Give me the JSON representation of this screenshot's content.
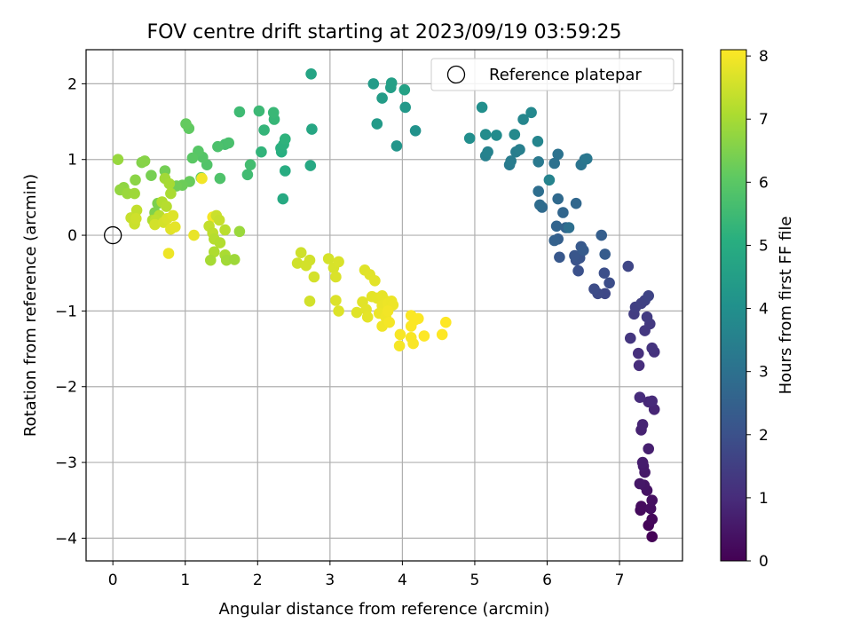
{
  "chart_data": {
    "type": "scatter",
    "title": "FOV centre drift starting at 2023/09/19 03:59:25",
    "xlabel": "Angular distance from reference (arcmin)",
    "ylabel": "Rotation from reference (arcmin)",
    "xlim": [
      -0.37,
      7.87
    ],
    "ylim": [
      -4.3,
      2.45
    ],
    "xticks": [
      0,
      1,
      2,
      3,
      4,
      5,
      6,
      7
    ],
    "yticks": [
      2,
      1,
      0,
      -1,
      -2,
      -3,
      -4
    ],
    "xtick_labels": [
      "0",
      "1",
      "2",
      "3",
      "4",
      "5",
      "6",
      "7"
    ],
    "ytick_labels": [
      "2",
      "1",
      "0",
      "−1",
      "−2",
      "−3",
      "−4"
    ],
    "grid": true,
    "legend": {
      "position": "top-right",
      "label": "Reference platepar"
    },
    "reference_point": {
      "x": 0,
      "y": 0
    },
    "colorbar": {
      "label": "Hours from first FF file",
      "range": [
        0,
        8.1
      ],
      "ticks": [
        0,
        1,
        2,
        3,
        4,
        5,
        6,
        7,
        8
      ],
      "tick_labels": [
        "0",
        "1",
        "2",
        "3",
        "4",
        "5",
        "6",
        "7",
        "8"
      ],
      "colormap": "viridis"
    },
    "points": [
      [
        7.45,
        -3.98,
        0.05
      ],
      [
        7.4,
        -3.83,
        0.1
      ],
      [
        7.45,
        -3.75,
        0.15
      ],
      [
        7.29,
        -3.63,
        0.2
      ],
      [
        7.3,
        -3.58,
        0.25
      ],
      [
        7.43,
        -3.61,
        0.3
      ],
      [
        7.45,
        -3.5,
        0.35
      ],
      [
        7.38,
        -3.37,
        0.4
      ],
      [
        7.34,
        -3.3,
        0.45
      ],
      [
        7.28,
        -3.28,
        0.5
      ],
      [
        7.35,
        -3.13,
        0.55
      ],
      [
        7.33,
        -3.05,
        0.6
      ],
      [
        7.32,
        -3.0,
        0.65
      ],
      [
        7.4,
        -2.82,
        0.7
      ],
      [
        7.3,
        -2.57,
        0.75
      ],
      [
        7.32,
        -2.5,
        0.8
      ],
      [
        7.48,
        -2.3,
        0.85
      ],
      [
        7.4,
        -2.2,
        0.9
      ],
      [
        7.45,
        -2.19,
        0.95
      ],
      [
        7.28,
        -2.14,
        1.0
      ],
      [
        7.27,
        -1.72,
        1.05
      ],
      [
        7.26,
        -1.56,
        1.1
      ],
      [
        7.48,
        -1.54,
        1.15
      ],
      [
        7.45,
        -1.49,
        1.2
      ],
      [
        7.15,
        -1.36,
        1.25
      ],
      [
        7.35,
        -1.26,
        1.3
      ],
      [
        7.42,
        -1.17,
        1.35
      ],
      [
        7.38,
        -1.08,
        1.4
      ],
      [
        7.2,
        -1.04,
        1.45
      ],
      [
        7.22,
        -0.95,
        1.5
      ],
      [
        7.3,
        -0.9,
        1.55
      ],
      [
        7.35,
        -0.86,
        1.6
      ],
      [
        7.4,
        -0.8,
        1.65
      ],
      [
        7.12,
        -0.41,
        1.7
      ],
      [
        6.8,
        -0.77,
        1.75
      ],
      [
        6.7,
        -0.77,
        1.8
      ],
      [
        6.65,
        -0.71,
        1.85
      ],
      [
        6.86,
        -0.63,
        1.9
      ],
      [
        6.79,
        -0.5,
        1.95
      ],
      [
        6.43,
        -0.47,
        2.0
      ],
      [
        6.4,
        -0.33,
        2.05
      ],
      [
        6.45,
        -0.3,
        2.1
      ],
      [
        6.38,
        -0.27,
        2.15
      ],
      [
        6.17,
        -0.29,
        2.2
      ],
      [
        6.47,
        -0.15,
        2.25
      ],
      [
        6.5,
        -0.2,
        2.3
      ],
      [
        6.8,
        -0.25,
        2.35
      ],
      [
        6.75,
        0.0,
        2.4
      ],
      [
        6.15,
        -0.05,
        2.45
      ],
      [
        6.1,
        -0.07,
        2.5
      ],
      [
        6.26,
        0.1,
        2.55
      ],
      [
        6.13,
        0.12,
        2.6
      ],
      [
        6.22,
        0.3,
        2.65
      ],
      [
        6.4,
        0.42,
        2.7
      ],
      [
        6.15,
        0.48,
        2.75
      ],
      [
        5.93,
        0.37,
        2.8
      ],
      [
        5.9,
        0.4,
        2.85
      ],
      [
        5.88,
        0.58,
        2.9
      ],
      [
        6.3,
        0.1,
        2.95
      ],
      [
        6.1,
        0.95,
        3.0
      ],
      [
        6.15,
        1.07,
        3.05
      ],
      [
        6.47,
        0.93,
        3.1
      ],
      [
        6.52,
        1.0,
        3.15
      ],
      [
        6.55,
        1.01,
        3.2
      ],
      [
        5.88,
        0.97,
        3.25
      ],
      [
        5.48,
        0.93,
        3.3
      ],
      [
        5.5,
        0.98,
        3.35
      ],
      [
        5.57,
        1.1,
        3.4
      ],
      [
        5.62,
        1.13,
        3.45
      ],
      [
        5.15,
        1.05,
        3.5
      ],
      [
        5.18,
        1.1,
        3.55
      ],
      [
        6.03,
        0.73,
        3.6
      ],
      [
        5.87,
        1.24,
        3.65
      ],
      [
        5.67,
        1.53,
        3.7
      ],
      [
        5.78,
        1.62,
        3.75
      ],
      [
        5.55,
        1.33,
        3.8
      ],
      [
        5.3,
        1.32,
        3.85
      ],
      [
        5.15,
        1.33,
        3.9
      ],
      [
        4.93,
        1.28,
        3.95
      ],
      [
        5.1,
        1.69,
        4.0
      ],
      [
        4.18,
        1.38,
        4.1
      ],
      [
        3.92,
        1.18,
        4.2
      ],
      [
        4.04,
        1.69,
        4.3
      ],
      [
        3.65,
        1.47,
        4.35
      ],
      [
        3.6,
        2.0,
        4.4
      ],
      [
        3.72,
        1.81,
        4.45
      ],
      [
        3.84,
        1.95,
        4.5
      ],
      [
        3.85,
        2.01,
        4.55
      ],
      [
        4.03,
        1.92,
        4.6
      ],
      [
        2.74,
        2.13,
        4.7
      ],
      [
        2.75,
        1.4,
        4.8
      ],
      [
        2.73,
        0.92,
        4.85
      ],
      [
        2.35,
        0.48,
        4.9
      ],
      [
        2.38,
        0.85,
        5.0
      ],
      [
        2.33,
        1.1,
        5.05
      ],
      [
        2.32,
        1.15,
        5.1
      ],
      [
        2.36,
        1.2,
        5.15
      ],
      [
        2.38,
        1.27,
        5.2
      ],
      [
        2.05,
        1.1,
        5.25
      ],
      [
        2.09,
        1.39,
        5.3
      ],
      [
        2.23,
        1.53,
        5.35
      ],
      [
        2.22,
        1.62,
        5.4
      ],
      [
        2.02,
        1.64,
        5.45
      ],
      [
        1.75,
        1.63,
        5.5
      ],
      [
        1.86,
        0.8,
        5.55
      ],
      [
        1.9,
        0.93,
        5.6
      ],
      [
        1.55,
        1.2,
        5.65
      ],
      [
        1.6,
        1.22,
        5.7
      ],
      [
        1.45,
        1.17,
        5.75
      ],
      [
        1.48,
        0.75,
        5.8
      ],
      [
        1.3,
        0.93,
        5.85
      ],
      [
        1.24,
        1.03,
        5.9
      ],
      [
        1.18,
        1.11,
        5.95
      ],
      [
        1.1,
        1.02,
        6.0
      ],
      [
        1.22,
        0.76,
        6.05
      ],
      [
        1.05,
        1.41,
        6.1
      ],
      [
        1.01,
        1.47,
        6.15
      ],
      [
        1.06,
        0.71,
        6.2
      ],
      [
        0.96,
        0.66,
        6.25
      ],
      [
        0.88,
        0.65,
        6.3
      ],
      [
        0.72,
        0.85,
        6.35
      ],
      [
        0.53,
        0.79,
        6.4
      ],
      [
        0.62,
        0.42,
        6.45
      ],
      [
        0.58,
        0.3,
        6.5
      ],
      [
        0.4,
        0.96,
        6.55
      ],
      [
        0.44,
        0.98,
        6.6
      ],
      [
        0.31,
        0.73,
        6.65
      ],
      [
        0.15,
        0.63,
        6.7
      ],
      [
        0.1,
        0.6,
        6.75
      ],
      [
        0.07,
        1.0,
        6.8
      ],
      [
        0.2,
        0.55,
        6.85
      ],
      [
        0.3,
        0.55,
        6.9
      ],
      [
        0.72,
        0.75,
        6.95
      ],
      [
        0.78,
        0.68,
        7.0
      ],
      [
        0.8,
        0.55,
        7.05
      ],
      [
        0.55,
        0.2,
        7.1
      ],
      [
        0.68,
        0.44,
        7.15
      ],
      [
        0.74,
        0.38,
        7.2
      ],
      [
        0.64,
        0.26,
        7.25
      ],
      [
        0.59,
        0.2,
        7.3
      ],
      [
        0.33,
        0.33,
        7.35
      ],
      [
        0.25,
        0.23,
        7.4
      ],
      [
        0.3,
        0.15,
        7.45
      ],
      [
        0.32,
        0.22,
        7.5
      ],
      [
        0.58,
        0.14,
        7.55
      ],
      [
        0.7,
        0.17,
        7.6
      ],
      [
        0.75,
        0.22,
        7.65
      ],
      [
        0.83,
        0.26,
        7.7
      ],
      [
        0.8,
        0.08,
        7.75
      ],
      [
        0.86,
        0.11,
        7.8
      ],
      [
        1.12,
        0.0,
        7.85
      ],
      [
        0.77,
        -0.24,
        7.9
      ],
      [
        1.23,
        0.75,
        7.95
      ],
      [
        1.38,
        0.24,
        8.0
      ]
    ],
    "points_b": [
      [
        1.43,
        0.26,
        7.45
      ],
      [
        1.47,
        0.2,
        7.4
      ],
      [
        1.33,
        0.12,
        7.35
      ],
      [
        1.38,
        0.03,
        7.3
      ],
      [
        1.55,
        0.07,
        7.25
      ],
      [
        1.4,
        -0.05,
        7.2
      ],
      [
        1.48,
        -0.1,
        7.15
      ],
      [
        1.4,
        -0.22,
        7.1
      ],
      [
        1.55,
        -0.26,
        7.05
      ],
      [
        1.35,
        -0.33,
        7.0
      ],
      [
        1.57,
        -0.33,
        6.95
      ],
      [
        1.68,
        -0.32,
        6.9
      ],
      [
        1.75,
        0.05,
        6.85
      ],
      [
        2.6,
        -0.23,
        7.5
      ],
      [
        2.55,
        -0.37,
        7.52
      ],
      [
        2.72,
        -0.33,
        7.54
      ],
      [
        2.67,
        -0.4,
        7.56
      ],
      [
        2.78,
        -0.55,
        7.58
      ],
      [
        2.72,
        -0.87,
        7.55
      ],
      [
        2.98,
        -0.31,
        7.6
      ],
      [
        3.05,
        -0.43,
        7.62
      ],
      [
        3.12,
        -0.35,
        7.64
      ],
      [
        3.08,
        -0.55,
        7.66
      ],
      [
        3.08,
        -0.86,
        7.68
      ],
      [
        3.12,
        -1.0,
        7.7
      ],
      [
        3.37,
        -1.02,
        7.72
      ],
      [
        3.45,
        -0.88,
        7.74
      ],
      [
        3.5,
        -0.98,
        7.76
      ],
      [
        3.52,
        -1.08,
        7.78
      ],
      [
        3.48,
        -0.46,
        7.72
      ],
      [
        3.55,
        -0.52,
        7.74
      ],
      [
        3.62,
        -0.6,
        7.76
      ],
      [
        3.58,
        -0.81,
        7.78
      ],
      [
        3.65,
        -0.83,
        7.8
      ],
      [
        3.72,
        -0.8,
        7.82
      ],
      [
        3.78,
        -0.87,
        7.84
      ],
      [
        3.72,
        -0.93,
        7.86
      ],
      [
        3.68,
        -1.03,
        7.88
      ],
      [
        3.8,
        -0.9,
        7.9
      ],
      [
        3.85,
        -0.87,
        7.88
      ],
      [
        3.87,
        -0.92,
        7.9
      ],
      [
        3.77,
        -1.08,
        7.92
      ],
      [
        3.72,
        -1.2,
        7.94
      ],
      [
        3.8,
        -1.0,
        7.96
      ],
      [
        3.82,
        -1.15,
        7.98
      ],
      [
        3.96,
        -1.46,
        8.0
      ],
      [
        3.97,
        -1.31,
        8.02
      ],
      [
        4.12,
        -1.35,
        8.04
      ],
      [
        4.12,
        -1.06,
        8.06
      ],
      [
        4.17,
        -1.12,
        8.06
      ],
      [
        4.22,
        -1.1,
        8.08
      ],
      [
        4.12,
        -1.2,
        8.08
      ],
      [
        4.3,
        -1.33,
        8.1
      ],
      [
        4.55,
        -1.31,
        8.1
      ],
      [
        4.6,
        -1.15,
        8.1
      ],
      [
        4.15,
        -1.43,
        8.05
      ]
    ]
  }
}
